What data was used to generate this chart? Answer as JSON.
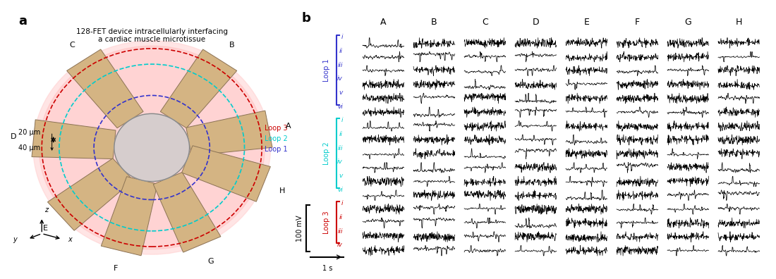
{
  "title_a": "128-FET device intracellularly interfacing\na cardiac muscle microtissue",
  "panel_a_label": "a",
  "panel_b_label": "b",
  "loop1_color": "#3333cc",
  "loop2_color": "#00cccc",
  "loop3_color": "#cc0000",
  "columns": [
    "A",
    "B",
    "C",
    "D",
    "E",
    "F",
    "G",
    "H"
  ],
  "loop1_rows": [
    "i",
    "ii",
    "iii",
    "iv",
    "v",
    "vi"
  ],
  "loop2_rows": [
    "i",
    "ii",
    "iii",
    "iv",
    "v",
    "vi"
  ],
  "loop3_rows": [
    "i",
    "ii",
    "iii",
    "iv"
  ],
  "scale_bar_mv": 100,
  "scale_bar_s": 1,
  "device_labels": [
    "A",
    "B",
    "C",
    "D",
    "E",
    "F",
    "G",
    "H"
  ],
  "loop_labels": [
    "Loop 3",
    "Loop 2",
    "Loop 1"
  ],
  "loop_label_colors": [
    "#cc0000",
    "#00cccc",
    "#3333cc"
  ],
  "dim_20um": "20 μm",
  "dim_40um": "40 μm",
  "background_color": "#ffffff"
}
